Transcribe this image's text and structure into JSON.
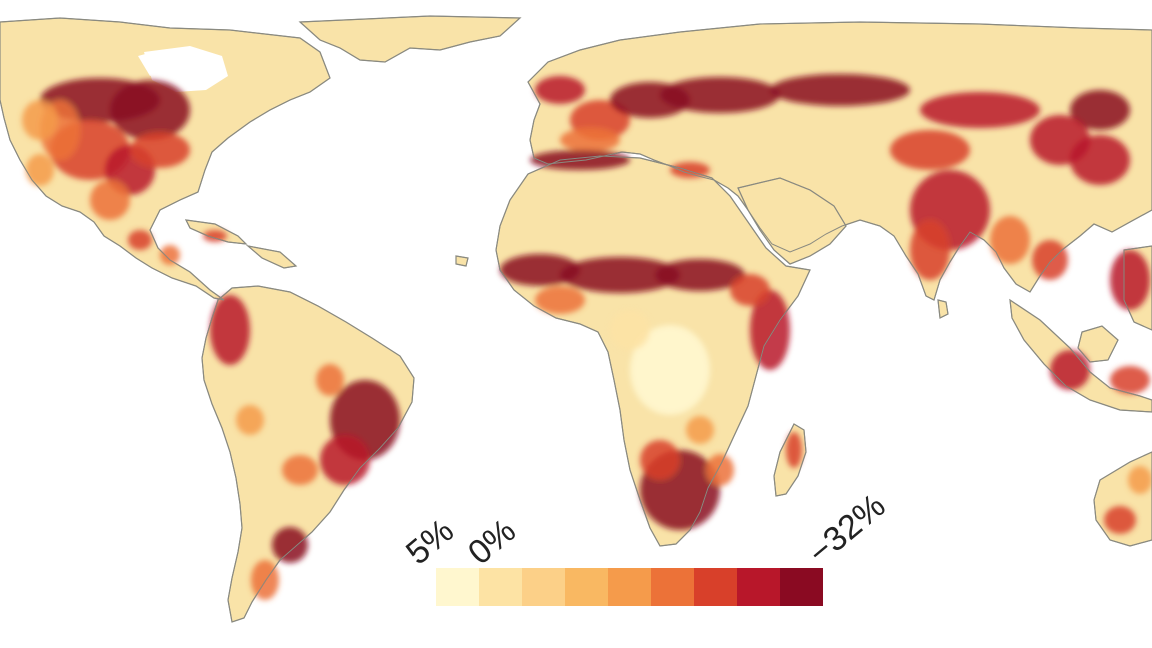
{
  "legend": {
    "labels": {
      "max": "5%",
      "zero": "0%",
      "min": "−32%"
    },
    "colors": [
      "#fff7cf",
      "#fde3a4",
      "#fcd088",
      "#f9b862",
      "#f59b4b",
      "#ec7238",
      "#d8402a",
      "#b8172a",
      "#8a0a22"
    ]
  },
  "colors": {
    "land_neutral": "#f9e3a8",
    "land_gain": "#fff5c8",
    "ice": "#ffffff",
    "coast": "#8a8a80",
    "ocean": "#ffffff"
  }
}
